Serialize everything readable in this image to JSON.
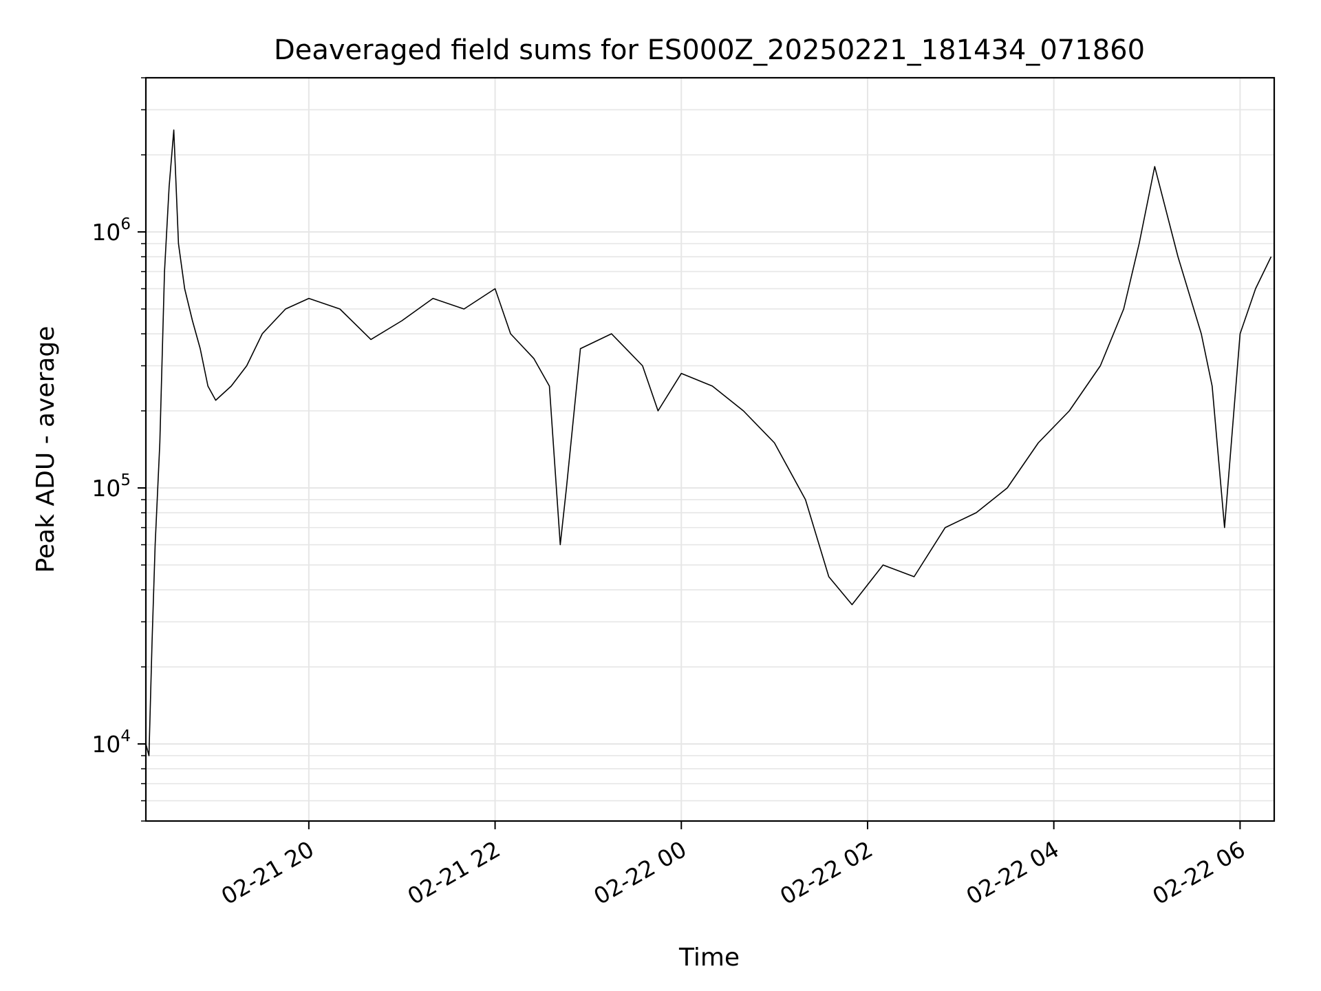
{
  "chart_data": {
    "type": "line",
    "title": "Deaveraged field sums for ES000Z_20250221_181434_071860",
    "xlabel": "Time",
    "ylabel": "Peak ADU - average",
    "yscale": "log",
    "ylim": [
      5000,
      4000000
    ],
    "xlim": [
      "2025-02-21 18:15",
      "2025-02-22 06:22"
    ],
    "grid": true,
    "line_color": "#000000",
    "grid_color": "#e6e6e6",
    "x_ticks": [
      {
        "value": "2025-02-21 20:00",
        "label": "02-21 20"
      },
      {
        "value": "2025-02-21 22:00",
        "label": "02-21 22"
      },
      {
        "value": "2025-02-22 00:00",
        "label": "02-22 00"
      },
      {
        "value": "2025-02-22 02:00",
        "label": "02-22 02"
      },
      {
        "value": "2025-02-22 04:00",
        "label": "02-22 04"
      },
      {
        "value": "2025-02-22 06:00",
        "label": "02-22 06"
      }
    ],
    "y_ticks": [
      {
        "value": 10000,
        "base": "10",
        "exp": "4"
      },
      {
        "value": 100000,
        "base": "10",
        "exp": "5"
      },
      {
        "value": 1000000,
        "base": "10",
        "exp": "6"
      }
    ],
    "series": [
      {
        "x": [
          "2025-02-21 18:15",
          "2025-02-21 18:17",
          "2025-02-21 18:19",
          "2025-02-21 18:21",
          "2025-02-21 18:24",
          "2025-02-21 18:27",
          "2025-02-21 18:30",
          "2025-02-21 18:33",
          "2025-02-21 18:36",
          "2025-02-21 18:40",
          "2025-02-21 18:45",
          "2025-02-21 18:50",
          "2025-02-21 18:55",
          "2025-02-21 19:00",
          "2025-02-21 19:10",
          "2025-02-21 19:20",
          "2025-02-21 19:30",
          "2025-02-21 19:45",
          "2025-02-21 20:00",
          "2025-02-21 20:20",
          "2025-02-21 20:40",
          "2025-02-21 21:00",
          "2025-02-21 21:20",
          "2025-02-21 21:40",
          "2025-02-21 22:00",
          "2025-02-21 22:10",
          "2025-02-21 22:25",
          "2025-02-21 22:35",
          "2025-02-21 22:42",
          "2025-02-21 22:46",
          "2025-02-21 22:55",
          "2025-02-21 23:15",
          "2025-02-21 23:35",
          "2025-02-21 23:45",
          "2025-02-22 00:00",
          "2025-02-22 00:20",
          "2025-02-22 00:40",
          "2025-02-22 01:00",
          "2025-02-22 01:20",
          "2025-02-22 01:35",
          "2025-02-22 01:50",
          "2025-02-22 02:10",
          "2025-02-22 02:30",
          "2025-02-22 02:50",
          "2025-02-22 03:10",
          "2025-02-22 03:30",
          "2025-02-22 03:50",
          "2025-02-22 04:10",
          "2025-02-22 04:30",
          "2025-02-22 04:45",
          "2025-02-22 04:55",
          "2025-02-22 05:05",
          "2025-02-22 05:20",
          "2025-02-22 05:35",
          "2025-02-22 05:42",
          "2025-02-22 05:50",
          "2025-02-22 06:00",
          "2025-02-22 06:10",
          "2025-02-22 06:20"
        ],
        "y": [
          10000,
          9000,
          25000,
          60000,
          150000,
          700000,
          1500000,
          2500000,
          900000,
          600000,
          450000,
          350000,
          250000,
          220000,
          250000,
          300000,
          400000,
          500000,
          550000,
          500000,
          380000,
          450000,
          550000,
          500000,
          600000,
          400000,
          320000,
          250000,
          60000,
          100000,
          350000,
          400000,
          300000,
          200000,
          280000,
          250000,
          200000,
          150000,
          90000,
          45000,
          35000,
          50000,
          45000,
          70000,
          80000,
          100000,
          150000,
          200000,
          300000,
          500000,
          900000,
          1800000,
          800000,
          400000,
          250000,
          70000,
          400000,
          600000,
          800000
        ]
      }
    ]
  }
}
